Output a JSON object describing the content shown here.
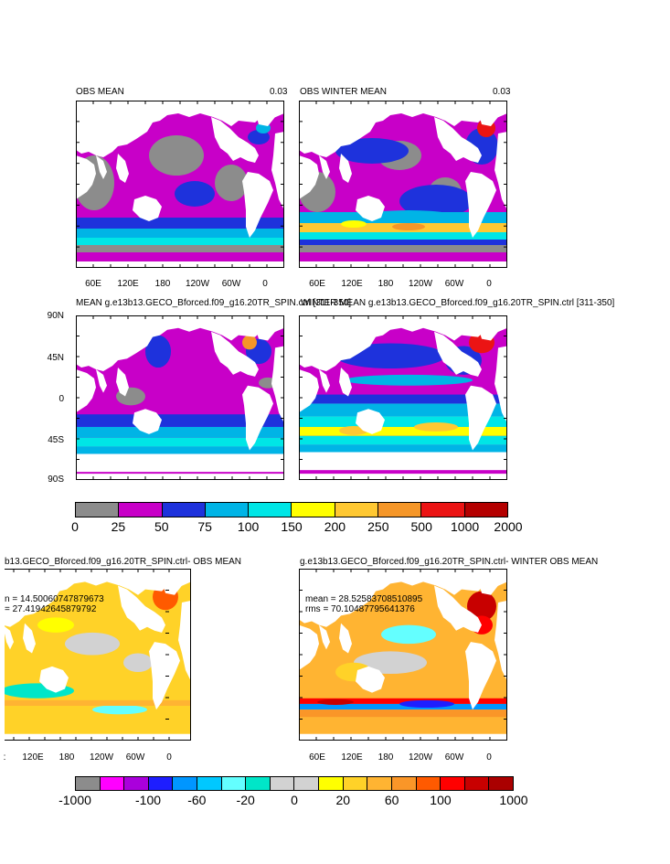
{
  "panels": {
    "obs_mean": {
      "title": "OBS MEAN",
      "value": "0.03"
    },
    "obs_winter_mean": {
      "title": "OBS WINTER MEAN",
      "value": "0.03"
    },
    "model_mean": {
      "title": "MEAN g.e13b13.GECO_Bforced.f09_g16.20TR_SPIN.ctrl [311-350]"
    },
    "model_winter_mean": {
      "title": "WINTER MEAN g.e13b13.GECO_Bforced.f09_g16.20TR_SPIN.ctrl [311-350]"
    },
    "diff_mean": {
      "title": "b13.GECO_Bforced.f09_g16.20TR_SPIN.ctrl- OBS MEAN",
      "mean": "n = 14.50060747879673",
      "rms": "= 27.41942645879792"
    },
    "diff_winter": {
      "title": "g.e13b13.GECO_Bforced.f09_g16.20TR_SPIN.ctrl- WINTER OBS MEAN",
      "mean": "mean = 28.52583708510895",
      "rms": "rms = 70.10487795641376"
    }
  },
  "longitude_labels": [
    "60E",
    "120E",
    "180",
    "120W",
    "60W",
    "0"
  ],
  "longitude_labels_partial": [
    "120E",
    "180",
    "120W",
    "60W",
    "0"
  ],
  "latitude_labels": [
    "90N",
    "45N",
    "0",
    "45S",
    "90S"
  ],
  "colorbar_top": {
    "labels": [
      "0",
      "25",
      "50",
      "75",
      "100",
      "150",
      "200",
      "250",
      "500",
      "1000",
      "2000"
    ],
    "colors": [
      "#8c8c8c",
      "#c800c8",
      "#1e32dc",
      "#00b4e6",
      "#00e6e6",
      "#ffff00",
      "#ffc832",
      "#f59628",
      "#eb1414",
      "#b40000"
    ]
  },
  "colorbar_bottom": {
    "labels": [
      "-1000",
      "-100",
      "-60",
      "-20",
      "0",
      "20",
      "60",
      "100",
      "1000"
    ],
    "colors": [
      "#8c8c8c",
      "#ff00ff",
      "#aa00dc",
      "#1e1eff",
      "#0096ff",
      "#00c8ff",
      "#64ffff",
      "#00e6c8",
      "#d2d2d2",
      "#d2d2d2",
      "#ffff00",
      "#ffd228",
      "#ffb432",
      "#fa9628",
      "#ff5a00",
      "#ff0000",
      "#c80000",
      "#aa0000"
    ]
  }
}
